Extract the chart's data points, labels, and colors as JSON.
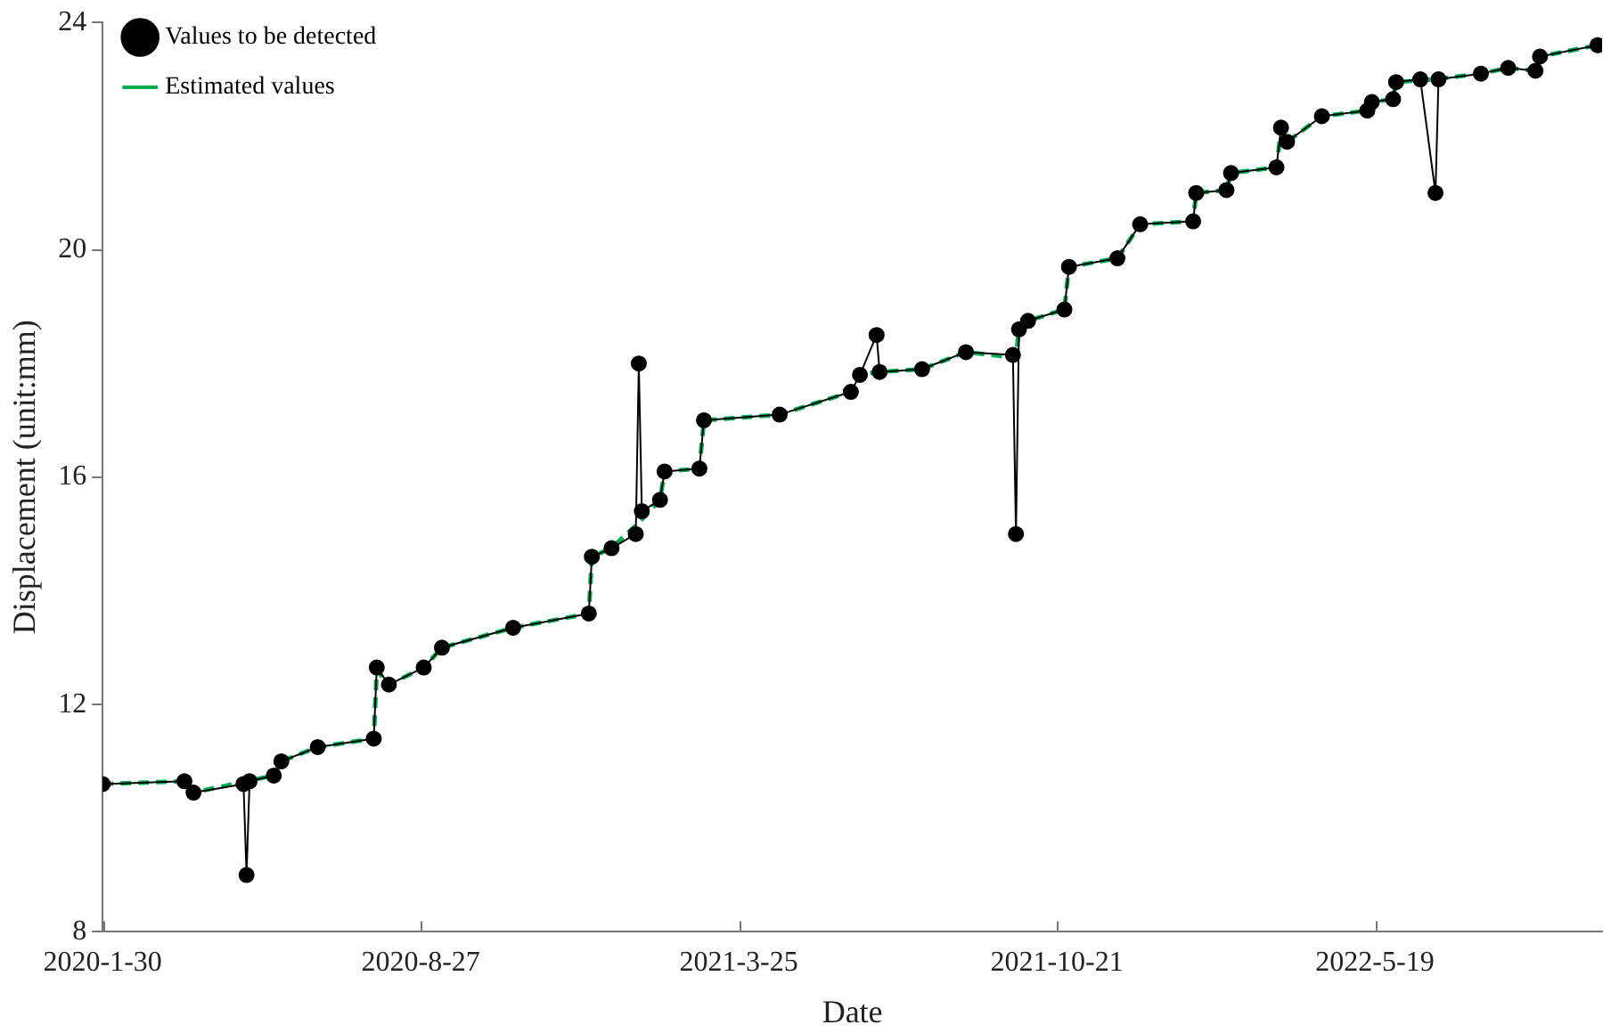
{
  "chart_data": {
    "type": "line",
    "xlabel": "Date",
    "ylabel": "Displacement (unit:mm)",
    "xlim": [
      "2020-01-30",
      "2022-10-16"
    ],
    "xticks": [
      {
        "value": "2020-01-30",
        "label": "2020-1-30"
      },
      {
        "value": "2020-08-27",
        "label": "2020-8-27"
      },
      {
        "value": "2021-03-25",
        "label": "2021-3-25"
      },
      {
        "value": "2021-10-21",
        "label": "2021-10-21"
      },
      {
        "value": "2022-05-19",
        "label": "2022-5-19"
      }
    ],
    "ylim": [
      8,
      24
    ],
    "yticks": [
      8,
      12,
      16,
      20,
      24
    ],
    "grid": false,
    "legend": "top left",
    "series": [
      {
        "name": "Values to be detected",
        "color": "#000000",
        "marker": "circle",
        "line_style": "solid",
        "x": [
          "2020-01-30",
          "2020-03-24",
          "2020-03-30",
          "2020-05-02",
          "2020-05-04",
          "2020-05-06",
          "2020-05-22",
          "2020-05-27",
          "2020-06-20",
          "2020-07-27",
          "2020-07-29",
          "2020-08-06",
          "2020-08-29",
          "2020-09-10",
          "2020-10-27",
          "2020-12-16",
          "2020-12-18",
          "2020-12-31",
          "2021-01-16",
          "2021-01-18",
          "2021-01-20",
          "2021-02-01",
          "2021-02-04",
          "2021-02-27",
          "2021-03-02",
          "2021-04-21",
          "2021-06-07",
          "2021-06-13",
          "2021-06-24",
          "2021-06-26",
          "2021-07-24",
          "2021-08-22",
          "2021-09-22",
          "2021-09-24",
          "2021-09-26",
          "2021-10-02",
          "2021-10-26",
          "2021-10-29",
          "2021-11-30",
          "2021-12-15",
          "2022-01-19",
          "2022-01-21",
          "2022-02-10",
          "2022-02-13",
          "2022-03-15",
          "2022-03-18",
          "2022-03-22",
          "2022-04-14",
          "2022-05-14",
          "2022-05-17",
          "2022-05-31",
          "2022-06-02",
          "2022-06-18",
          "2022-06-28",
          "2022-06-30",
          "2022-07-28",
          "2022-08-15",
          "2022-09-02",
          "2022-09-05",
          "2022-10-13"
        ],
        "values": [
          10.6,
          10.65,
          10.45,
          10.6,
          9.0,
          10.65,
          10.75,
          11.0,
          11.25,
          11.4,
          12.65,
          12.35,
          12.65,
          13.0,
          13.35,
          13.6,
          14.6,
          14.75,
          15.0,
          18.0,
          15.4,
          15.6,
          16.1,
          16.15,
          17.0,
          17.1,
          17.5,
          17.8,
          18.5,
          17.85,
          17.9,
          18.2,
          18.15,
          15.0,
          18.6,
          18.75,
          18.95,
          19.7,
          19.85,
          20.45,
          20.5,
          21.0,
          21.05,
          21.35,
          21.45,
          22.15,
          21.9,
          22.35,
          22.45,
          22.6,
          22.65,
          22.95,
          23.0,
          21.0,
          23.0,
          23.1,
          23.2,
          23.15,
          23.4,
          23.6
        ]
      },
      {
        "name": "Estimated values",
        "color": "#00b050",
        "marker": "none",
        "line_style": "dashed",
        "x": [
          "2020-01-30",
          "2020-03-24",
          "2020-03-30",
          "2020-05-04",
          "2020-05-22",
          "2020-05-27",
          "2020-06-20",
          "2020-07-27",
          "2020-07-29",
          "2020-08-06",
          "2020-08-29",
          "2020-09-10",
          "2020-10-27",
          "2020-12-16",
          "2020-12-18",
          "2020-12-31",
          "2021-01-18",
          "2021-02-01",
          "2021-02-04",
          "2021-02-27",
          "2021-03-02",
          "2021-04-21",
          "2021-06-07",
          "2021-06-13",
          "2021-06-24",
          "2021-07-24",
          "2021-08-22",
          "2021-09-24",
          "2021-09-26",
          "2021-10-02",
          "2021-10-26",
          "2021-10-29",
          "2021-11-30",
          "2021-12-15",
          "2022-01-19",
          "2022-01-21",
          "2022-02-10",
          "2022-02-13",
          "2022-03-15",
          "2022-03-18",
          "2022-03-22",
          "2022-04-14",
          "2022-05-14",
          "2022-05-17",
          "2022-05-31",
          "2022-06-02",
          "2022-06-28",
          "2022-07-28",
          "2022-08-15",
          "2022-09-02",
          "2022-09-05",
          "2022-10-13"
        ],
        "values": [
          10.6,
          10.65,
          10.45,
          10.65,
          10.75,
          11.0,
          11.25,
          11.4,
          12.6,
          12.35,
          12.65,
          13.0,
          13.35,
          13.6,
          14.6,
          14.75,
          15.2,
          15.6,
          16.1,
          16.15,
          17.0,
          17.1,
          17.5,
          17.8,
          17.85,
          17.9,
          18.2,
          18.1,
          18.6,
          18.75,
          18.95,
          19.7,
          19.85,
          20.45,
          20.5,
          21.0,
          21.05,
          21.35,
          21.45,
          22.1,
          21.9,
          22.35,
          22.45,
          22.6,
          22.65,
          22.95,
          23.0,
          23.1,
          23.2,
          23.15,
          23.4,
          23.6
        ]
      }
    ]
  }
}
